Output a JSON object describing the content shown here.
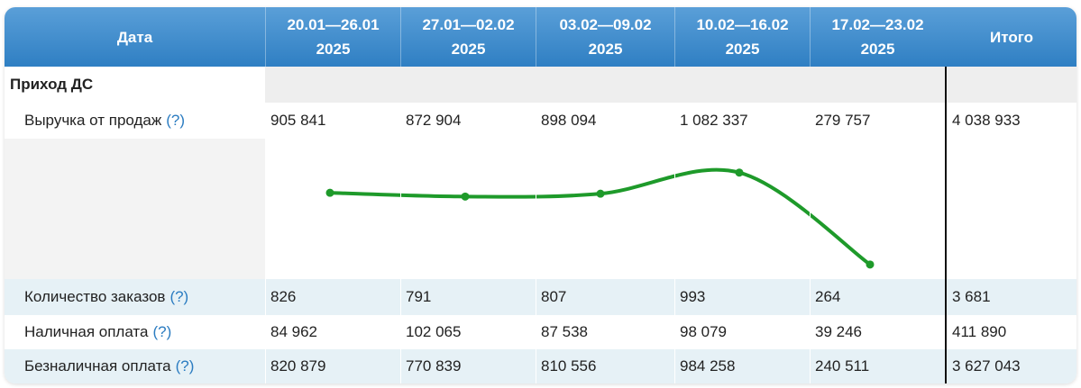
{
  "header": {
    "date_label": "Дата",
    "weeks": [
      {
        "range": "20.01—26.01",
        "year": "2025"
      },
      {
        "range": "27.01—02.02",
        "year": "2025"
      },
      {
        "range": "03.02—09.02",
        "year": "2025"
      },
      {
        "range": "10.02—16.02",
        "year": "2025"
      },
      {
        "range": "17.02—23.02",
        "year": "2025"
      }
    ],
    "total_label": "Итого"
  },
  "section": {
    "title": "Приход ДС"
  },
  "help_mark": "(?)",
  "rows": [
    {
      "label": "Выручка от продаж",
      "values": [
        "905 841",
        "872 904",
        "898 094",
        "1 082 337",
        "279 757"
      ],
      "total": "4 038 933"
    },
    {
      "label": "Количество заказов",
      "values": [
        "826",
        "791",
        "807",
        "993",
        "264"
      ],
      "total": "3 681"
    },
    {
      "label": "Наличная оплата",
      "values": [
        "84 962",
        "102 065",
        "87 538",
        "98 079",
        "39 246"
      ],
      "total": "411 890"
    },
    {
      "label": "Безналичная оплата",
      "values": [
        "820 879",
        "770 839",
        "810 556",
        "984 258",
        "240 511"
      ],
      "total": "3 627 043"
    }
  ],
  "chart_data": {
    "type": "line",
    "x": [
      "20.01—26.01",
      "27.01—02.02",
      "03.02—09.02",
      "10.02—16.02",
      "17.02—23.02"
    ],
    "series": [
      {
        "values": [
          905841,
          872904,
          898094,
          1082337,
          279757
        ]
      }
    ],
    "color": "#1e9a2a"
  },
  "colors": {
    "header": "#3a88c9",
    "accent": "#2b7cc1",
    "row_tint": "#e6f1f6",
    "section_bg": "#eeeeee",
    "line": "#1e9a2a"
  }
}
